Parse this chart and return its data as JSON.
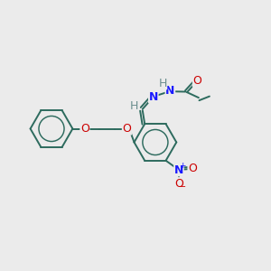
{
  "bg_color": "#ebebeb",
  "bond_color": "#2d6b5e",
  "atom_colors": {
    "O": "#cc0000",
    "N": "#1a1aff",
    "H": "#6b8e8e",
    "C": "#2d6b5e",
    "default": "#2d6b5e"
  },
  "lw": 1.4,
  "fs": 9.0,
  "figsize": [
    3.0,
    3.0
  ],
  "dpi": 100
}
